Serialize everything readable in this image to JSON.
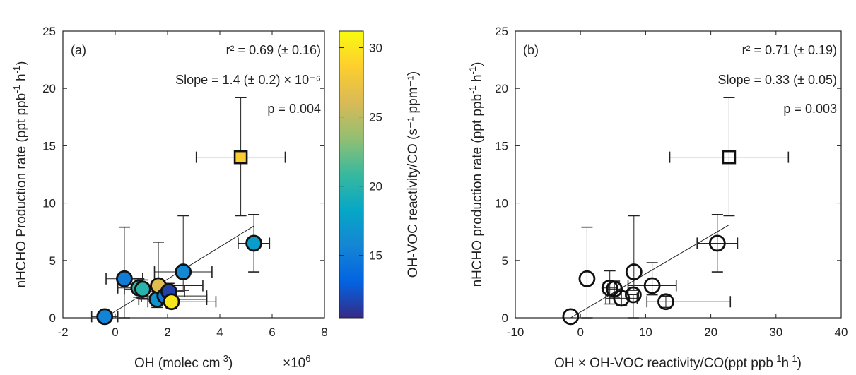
{
  "chart_data": [
    {
      "type": "scatter",
      "panel_label": "(a)",
      "xlabel": "OH (molec cm^-3)",
      "xlabel_parts": {
        "main": "OH (molec cm",
        "sup": "-3",
        "close": ")"
      },
      "x_multiplier": {
        "base": "×10",
        "exp": "6"
      },
      "ylabel": "nHCHO Production rate (ppt ppb^-1 h^-1)",
      "xlim": [
        -2,
        8
      ],
      "ylim": [
        0,
        25
      ],
      "xticks": [
        -2,
        0,
        2,
        4,
        6,
        8
      ],
      "yticks": [
        0,
        5,
        10,
        15,
        20,
        25
      ],
      "annotations": {
        "r2": "r² = 0.69 (± 0.16)",
        "slope": "Slope = 1.4 (± 0.2) × 10⁻⁶",
        "p": "p = 0.004"
      },
      "fit_line": {
        "x": [
          -0.4,
          5.3
        ],
        "y": [
          0,
          8.0
        ]
      },
      "colorbar": {
        "label": "OH-VOC reactivity/CO (s^-1 ppm^-1)",
        "label_text": "OH-VOC reactivity/CO (s⁻¹ ppm⁻¹)",
        "range": [
          10.5,
          31.2
        ],
        "ticks": [
          15,
          20,
          25,
          30
        ],
        "colors": [
          "#352a87",
          "#0363e1",
          "#1485d4",
          "#06a7c6",
          "#38b99e",
          "#92bf73",
          "#d9ba56",
          "#fcce2e",
          "#f9fb0e"
        ]
      },
      "points": [
        {
          "x": -0.4,
          "y": 0.1,
          "c": 15.5,
          "xerr": [
            0.5,
            0.5
          ],
          "yerr": [
            0,
            0
          ],
          "marker": "circle"
        },
        {
          "x": 0.35,
          "y": 3.4,
          "c": 15.0,
          "xerr": [
            0.7,
            0.7
          ],
          "yerr": [
            3.4,
            4.5
          ],
          "marker": "circle"
        },
        {
          "x": 0.9,
          "y": 2.6,
          "c": 20.5,
          "xerr": [
            0.8,
            0.8
          ],
          "yerr": [
            0.8,
            0.8
          ],
          "marker": "circle"
        },
        {
          "x": 1.05,
          "y": 2.5,
          "c": 20.0,
          "xerr": [
            0.7,
            0.7
          ],
          "yerr": [
            0.8,
            0.8
          ],
          "marker": "circle"
        },
        {
          "x": 1.6,
          "y": 1.6,
          "c": 17.0,
          "xerr": [
            0.7,
            1.9
          ],
          "yerr": [
            0.7,
            0.7
          ],
          "marker": "circle"
        },
        {
          "x": 1.65,
          "y": 2.8,
          "c": 26.5,
          "xerr": [
            0.6,
            1.7
          ],
          "yerr": [
            0.9,
            3.8
          ],
          "marker": "circle"
        },
        {
          "x": 1.9,
          "y": 1.9,
          "c": 14.5,
          "xerr": [
            0.9,
            1.6
          ],
          "yerr": [
            0.6,
            0.6
          ],
          "marker": "circle"
        },
        {
          "x": 2.05,
          "y": 2.3,
          "c": 11.5,
          "xerr": [
            0.6,
            0.6
          ],
          "yerr": [
            0.7,
            0.7
          ],
          "marker": "circle"
        },
        {
          "x": 2.15,
          "y": 1.4,
          "c": 30.0,
          "xerr": [
            0.9,
            1.7
          ],
          "yerr": [
            0.6,
            0.6
          ],
          "marker": "circle"
        },
        {
          "x": 2.6,
          "y": 4.0,
          "c": 16.0,
          "xerr": [
            1.1,
            1.1
          ],
          "yerr": [
            1.6,
            4.9
          ],
          "marker": "circle"
        },
        {
          "x": 5.3,
          "y": 6.5,
          "c": 17.5,
          "xerr": [
            0.6,
            0.6
          ],
          "yerr": [
            2.5,
            2.5
          ],
          "marker": "circle"
        },
        {
          "x": 4.8,
          "y": 14.0,
          "c": 28.5,
          "xerr": [
            1.7,
            1.7
          ],
          "yerr": [
            5.1,
            5.2
          ],
          "marker": "square"
        }
      ]
    },
    {
      "type": "scatter",
      "panel_label": "(b)",
      "xlabel": "OH × OH-VOC reactivity/CO(ppt ppb^-1 h^-1)",
      "xlabel_parts": {
        "main": "OH × OH-VOC reactivity/CO(ppt ppb",
        "sup1": "-1",
        "mid": "h",
        "sup2": "-1",
        "close": ")"
      },
      "ylabel": "nHCHO production rate (ppt ppb^-1 h^-1)",
      "xlim": [
        -10,
        40
      ],
      "ylim": [
        0,
        25
      ],
      "xticks": [
        -10,
        0,
        10,
        20,
        30,
        40
      ],
      "yticks": [
        0,
        5,
        10,
        15,
        20,
        25
      ],
      "annotations": {
        "r2": "r² = 0.71 (± 0.19)",
        "slope": "Slope = 0.33 (± 0.05)",
        "p": "p = 0.003"
      },
      "fit_line": {
        "x": [
          -1.5,
          22.8
        ],
        "y": [
          0,
          8.1
        ]
      },
      "points": [
        {
          "x": -1.5,
          "y": 0.1,
          "xerr": [
            0,
            0
          ],
          "yerr": [
            0,
            0
          ],
          "marker": "circle"
        },
        {
          "x": 1.0,
          "y": 3.4,
          "xerr": [
            0,
            0
          ],
          "yerr": [
            3.4,
            4.5
          ],
          "marker": "circle"
        },
        {
          "x": 4.5,
          "y": 2.6,
          "xerr": [
            1.0,
            1.0
          ],
          "yerr": [
            1.4,
            1.5
          ],
          "marker": "circle"
        },
        {
          "x": 5.2,
          "y": 2.5,
          "xerr": [
            1.0,
            1.0
          ],
          "yerr": [
            0.7,
            0.7
          ],
          "marker": "circle"
        },
        {
          "x": 6.3,
          "y": 1.7,
          "xerr": [
            2.4,
            2.4
          ],
          "yerr": [
            0.6,
            0.6
          ],
          "marker": "circle"
        },
        {
          "x": 8.1,
          "y": 2.0,
          "xerr": [
            0.8,
            0.8
          ],
          "yerr": [
            2.0,
            0
          ],
          "marker": "circle"
        },
        {
          "x": 8.2,
          "y": 4.0,
          "xerr": [
            0,
            0
          ],
          "yerr": [
            1.6,
            4.9
          ],
          "marker": "circle"
        },
        {
          "x": 11.0,
          "y": 2.8,
          "xerr": [
            3.7,
            3.7
          ],
          "yerr": [
            0.8,
            2.0
          ],
          "marker": "circle"
        },
        {
          "x": 13.1,
          "y": 1.4,
          "xerr": [
            2.9,
            9.9
          ],
          "yerr": [
            0.5,
            0.5
          ],
          "marker": "circle"
        },
        {
          "x": 21.0,
          "y": 6.5,
          "xerr": [
            3.1,
            3.1
          ],
          "yerr": [
            2.5,
            2.5
          ],
          "marker": "circle"
        },
        {
          "x": 22.8,
          "y": 14.0,
          "xerr": [
            9.1,
            9.1
          ],
          "yerr": [
            5.1,
            5.2
          ],
          "marker": "square"
        }
      ]
    }
  ]
}
